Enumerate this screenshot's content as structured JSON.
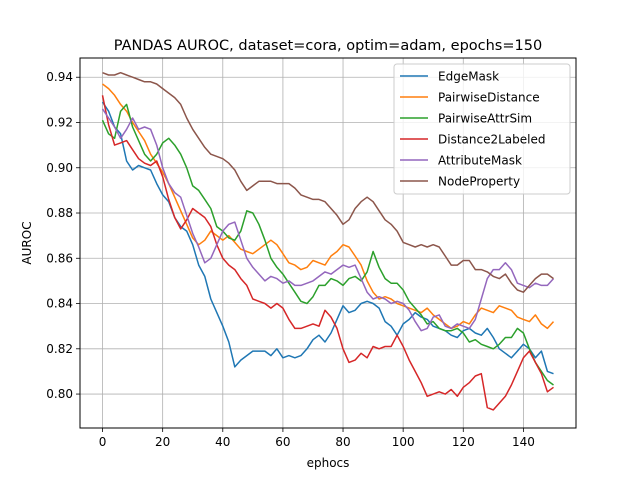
{
  "chart_data": {
    "type": "line",
    "title": "PANDAS AUROC, dataset=cora, optim=adam, epochs=150",
    "xlabel": "ephocs",
    "ylabel": "AUROC",
    "xlim": [
      -7.5,
      157.5
    ],
    "ylim": [
      0.785,
      0.9485
    ],
    "xticks": [
      0,
      20,
      40,
      60,
      80,
      100,
      120,
      140
    ],
    "yticks": [
      0.8,
      0.82,
      0.84,
      0.86,
      0.88,
      0.9,
      0.92,
      0.94
    ],
    "ytick_labels": [
      "0.80",
      "0.82",
      "0.84",
      "0.86",
      "0.88",
      "0.90",
      "0.92",
      "0.94"
    ],
    "grid": true,
    "legend_position": "top-right",
    "series": [
      {
        "name": "EdgeMask",
        "color": "#1f77b4",
        "x": [
          0,
          2,
          4,
          6,
          8,
          10,
          12,
          14,
          16,
          18,
          20,
          22,
          24,
          26,
          28,
          30,
          32,
          34,
          36,
          38,
          40,
          42,
          44,
          46,
          48,
          50,
          52,
          54,
          56,
          58,
          60,
          62,
          64,
          66,
          68,
          70,
          72,
          74,
          76,
          78,
          80,
          82,
          84,
          86,
          88,
          90,
          92,
          94,
          96,
          98,
          100,
          102,
          104,
          106,
          108,
          110,
          112,
          114,
          116,
          118,
          120,
          122,
          124,
          126,
          128,
          130,
          132,
          134,
          136,
          138,
          140,
          142,
          144,
          146,
          148,
          150
        ],
        "y": [
          0.929,
          0.925,
          0.918,
          0.915,
          0.903,
          0.899,
          0.901,
          0.9,
          0.899,
          0.893,
          0.888,
          0.885,
          0.878,
          0.874,
          0.872,
          0.866,
          0.857,
          0.852,
          0.842,
          0.836,
          0.83,
          0.823,
          0.812,
          0.815,
          0.817,
          0.819,
          0.819,
          0.819,
          0.817,
          0.82,
          0.816,
          0.817,
          0.816,
          0.817,
          0.82,
          0.824,
          0.826,
          0.823,
          0.827,
          0.833,
          0.839,
          0.836,
          0.837,
          0.84,
          0.841,
          0.84,
          0.838,
          0.832,
          0.83,
          0.826,
          0.831,
          0.833,
          0.836,
          0.834,
          0.833,
          0.83,
          0.829,
          0.828,
          0.826,
          0.825,
          0.828,
          0.829,
          0.827,
          0.826,
          0.829,
          0.825,
          0.82,
          0.818,
          0.816,
          0.819,
          0.822,
          0.82,
          0.816,
          0.819,
          0.81,
          0.809
        ]
      },
      {
        "name": "PairwiseDistance",
        "color": "#ff7f0e",
        "x": [
          0,
          2,
          4,
          6,
          8,
          10,
          12,
          14,
          16,
          18,
          20,
          22,
          24,
          26,
          28,
          30,
          32,
          34,
          36,
          38,
          40,
          42,
          44,
          46,
          48,
          50,
          52,
          54,
          56,
          58,
          60,
          62,
          64,
          66,
          68,
          70,
          72,
          74,
          76,
          78,
          80,
          82,
          84,
          86,
          88,
          90,
          92,
          94,
          96,
          98,
          100,
          102,
          104,
          106,
          108,
          110,
          112,
          114,
          116,
          118,
          120,
          122,
          124,
          126,
          128,
          130,
          132,
          134,
          136,
          138,
          140,
          142,
          144,
          146,
          148,
          150
        ],
        "y": [
          0.937,
          0.935,
          0.932,
          0.928,
          0.925,
          0.92,
          0.916,
          0.912,
          0.906,
          0.902,
          0.898,
          0.893,
          0.887,
          0.881,
          0.875,
          0.869,
          0.866,
          0.868,
          0.872,
          0.87,
          0.868,
          0.87,
          0.867,
          0.864,
          0.863,
          0.862,
          0.864,
          0.866,
          0.868,
          0.866,
          0.862,
          0.858,
          0.857,
          0.855,
          0.856,
          0.859,
          0.858,
          0.857,
          0.861,
          0.863,
          0.866,
          0.865,
          0.861,
          0.857,
          0.85,
          0.845,
          0.842,
          0.843,
          0.842,
          0.84,
          0.839,
          0.838,
          0.837,
          0.836,
          0.838,
          0.835,
          0.833,
          0.831,
          0.829,
          0.83,
          0.832,
          0.831,
          0.835,
          0.838,
          0.837,
          0.836,
          0.839,
          0.838,
          0.837,
          0.834,
          0.833,
          0.832,
          0.835,
          0.831,
          0.829,
          0.832
        ]
      },
      {
        "name": "PairwiseAttrSim",
        "color": "#2ca02c",
        "x": [
          0,
          2,
          4,
          6,
          8,
          10,
          12,
          14,
          16,
          18,
          20,
          22,
          24,
          26,
          28,
          30,
          32,
          34,
          36,
          38,
          40,
          42,
          44,
          46,
          48,
          50,
          52,
          54,
          56,
          58,
          60,
          62,
          64,
          66,
          68,
          70,
          72,
          74,
          76,
          78,
          80,
          82,
          84,
          86,
          88,
          90,
          92,
          94,
          96,
          98,
          100,
          102,
          104,
          106,
          108,
          110,
          112,
          114,
          116,
          118,
          120,
          122,
          124,
          126,
          128,
          130,
          132,
          134,
          136,
          138,
          140,
          142,
          144,
          146,
          148,
          150
        ],
        "y": [
          0.921,
          0.915,
          0.913,
          0.925,
          0.928,
          0.918,
          0.912,
          0.906,
          0.903,
          0.906,
          0.911,
          0.913,
          0.91,
          0.906,
          0.9,
          0.892,
          0.89,
          0.886,
          0.882,
          0.874,
          0.872,
          0.869,
          0.868,
          0.872,
          0.881,
          0.88,
          0.875,
          0.868,
          0.86,
          0.856,
          0.853,
          0.849,
          0.845,
          0.841,
          0.84,
          0.843,
          0.848,
          0.848,
          0.851,
          0.85,
          0.848,
          0.851,
          0.852,
          0.85,
          0.854,
          0.863,
          0.856,
          0.851,
          0.849,
          0.849,
          0.846,
          0.841,
          0.838,
          0.835,
          0.831,
          0.832,
          0.829,
          0.828,
          0.828,
          0.829,
          0.827,
          0.823,
          0.824,
          0.822,
          0.821,
          0.82,
          0.822,
          0.825,
          0.825,
          0.829,
          0.827,
          0.82,
          0.814,
          0.81,
          0.806,
          0.804
        ]
      },
      {
        "name": "Distance2Labeled",
        "color": "#d62728",
        "x": [
          0,
          2,
          4,
          6,
          8,
          10,
          12,
          14,
          16,
          18,
          20,
          22,
          24,
          26,
          28,
          30,
          32,
          34,
          36,
          38,
          40,
          42,
          44,
          46,
          48,
          50,
          52,
          54,
          56,
          58,
          60,
          62,
          64,
          66,
          68,
          70,
          72,
          74,
          76,
          78,
          80,
          82,
          84,
          86,
          88,
          90,
          92,
          94,
          96,
          98,
          100,
          102,
          104,
          106,
          108,
          110,
          112,
          114,
          116,
          118,
          120,
          122,
          124,
          126,
          128,
          130,
          132,
          134,
          136,
          138,
          140,
          142,
          144,
          146,
          148,
          150
        ],
        "y": [
          0.932,
          0.919,
          0.91,
          0.911,
          0.912,
          0.908,
          0.904,
          0.902,
          0.901,
          0.903,
          0.896,
          0.886,
          0.878,
          0.873,
          0.877,
          0.882,
          0.88,
          0.878,
          0.874,
          0.866,
          0.86,
          0.857,
          0.855,
          0.851,
          0.848,
          0.842,
          0.841,
          0.84,
          0.838,
          0.84,
          0.838,
          0.833,
          0.829,
          0.829,
          0.83,
          0.831,
          0.83,
          0.837,
          0.834,
          0.829,
          0.82,
          0.814,
          0.815,
          0.818,
          0.816,
          0.821,
          0.82,
          0.821,
          0.821,
          0.826,
          0.821,
          0.815,
          0.81,
          0.805,
          0.799,
          0.8,
          0.801,
          0.8,
          0.802,
          0.799,
          0.803,
          0.805,
          0.808,
          0.809,
          0.794,
          0.793,
          0.796,
          0.799,
          0.804,
          0.81,
          0.816,
          0.819,
          0.814,
          0.809,
          0.801,
          0.803
        ]
      },
      {
        "name": "AttributeMask",
        "color": "#9467bd",
        "x": [
          0,
          2,
          4,
          6,
          8,
          10,
          12,
          14,
          16,
          18,
          20,
          22,
          24,
          26,
          28,
          30,
          32,
          34,
          36,
          38,
          40,
          42,
          44,
          46,
          48,
          50,
          52,
          54,
          56,
          58,
          60,
          62,
          64,
          66,
          68,
          70,
          72,
          74,
          76,
          78,
          80,
          82,
          84,
          86,
          88,
          90,
          92,
          94,
          96,
          98,
          100,
          102,
          104,
          106,
          108,
          110,
          112,
          114,
          116,
          118,
          120,
          122,
          124,
          126,
          128,
          130,
          132,
          134,
          136,
          138,
          140,
          142,
          144,
          146,
          148,
          150
        ],
        "y": [
          0.926,
          0.922,
          0.918,
          0.913,
          0.917,
          0.922,
          0.917,
          0.918,
          0.917,
          0.91,
          0.9,
          0.893,
          0.889,
          0.887,
          0.879,
          0.871,
          0.865,
          0.858,
          0.86,
          0.866,
          0.872,
          0.875,
          0.876,
          0.868,
          0.86,
          0.856,
          0.853,
          0.85,
          0.852,
          0.851,
          0.849,
          0.85,
          0.848,
          0.848,
          0.849,
          0.85,
          0.852,
          0.854,
          0.853,
          0.855,
          0.857,
          0.856,
          0.857,
          0.851,
          0.845,
          0.842,
          0.843,
          0.842,
          0.84,
          0.841,
          0.84,
          0.837,
          0.832,
          0.828,
          0.829,
          0.834,
          0.835,
          0.83,
          0.829,
          0.831,
          0.83,
          0.829,
          0.833,
          0.842,
          0.851,
          0.855,
          0.855,
          0.858,
          0.855,
          0.849,
          0.848,
          0.847,
          0.849,
          0.848,
          0.848,
          0.851
        ]
      },
      {
        "name": "NodeProperty",
        "color": "#8c564b",
        "x": [
          0,
          2,
          4,
          6,
          8,
          10,
          12,
          14,
          16,
          18,
          20,
          22,
          24,
          26,
          28,
          30,
          32,
          34,
          36,
          38,
          40,
          42,
          44,
          46,
          48,
          50,
          52,
          54,
          56,
          58,
          60,
          62,
          64,
          66,
          68,
          70,
          72,
          74,
          76,
          78,
          80,
          82,
          84,
          86,
          88,
          90,
          92,
          94,
          96,
          98,
          100,
          102,
          104,
          106,
          108,
          110,
          112,
          114,
          116,
          118,
          120,
          122,
          124,
          126,
          128,
          130,
          132,
          134,
          136,
          138,
          140,
          142,
          144,
          146,
          148,
          150
        ],
        "y": [
          0.942,
          0.941,
          0.941,
          0.942,
          0.941,
          0.94,
          0.939,
          0.938,
          0.938,
          0.937,
          0.935,
          0.933,
          0.931,
          0.928,
          0.922,
          0.917,
          0.913,
          0.909,
          0.906,
          0.905,
          0.904,
          0.902,
          0.899,
          0.894,
          0.89,
          0.892,
          0.894,
          0.894,
          0.894,
          0.893,
          0.893,
          0.893,
          0.891,
          0.888,
          0.887,
          0.886,
          0.886,
          0.885,
          0.882,
          0.879,
          0.875,
          0.877,
          0.882,
          0.885,
          0.887,
          0.885,
          0.881,
          0.877,
          0.875,
          0.872,
          0.867,
          0.866,
          0.865,
          0.866,
          0.865,
          0.866,
          0.865,
          0.861,
          0.857,
          0.857,
          0.859,
          0.859,
          0.855,
          0.855,
          0.854,
          0.852,
          0.851,
          0.853,
          0.849,
          0.846,
          0.845,
          0.848,
          0.851,
          0.853,
          0.853,
          0.851
        ]
      }
    ]
  }
}
